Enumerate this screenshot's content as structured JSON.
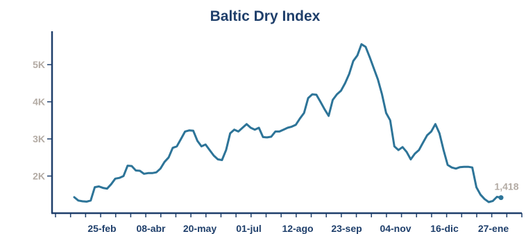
{
  "chart_data": {
    "type": "line",
    "title": "Baltic Dry Index",
    "xlabel": "",
    "ylabel": "",
    "ylim": [
      1000,
      5900
    ],
    "grid": false,
    "line_color": "#2d7498",
    "axis_color": "#1f3f6b",
    "y_ticks": [
      {
        "value": 2000,
        "label": "2K"
      },
      {
        "value": 3000,
        "label": "3K"
      },
      {
        "value": 4000,
        "label": "4K"
      },
      {
        "value": 5000,
        "label": "5K"
      }
    ],
    "x_ticks": [
      "25-feb",
      "08-abr",
      "20-may",
      "01-jul",
      "12-ago",
      "23-sep",
      "04-nov",
      "16-dic",
      "27-ene"
    ],
    "series": [
      {
        "values": [
          1430,
          1340,
          1320,
          1310,
          1340,
          1700,
          1720,
          1680,
          1660,
          1780,
          1930,
          1950,
          2000,
          2280,
          2270,
          2150,
          2140,
          2060,
          2080,
          2080,
          2100,
          2200,
          2380,
          2500,
          2760,
          2800,
          3000,
          3200,
          3230,
          3220,
          2950,
          2800,
          2850,
          2700,
          2550,
          2450,
          2430,
          2700,
          3150,
          3250,
          3200,
          3300,
          3400,
          3300,
          3250,
          3300,
          3050,
          3040,
          3060,
          3200,
          3200,
          3250,
          3300,
          3330,
          3380,
          3550,
          3700,
          4100,
          4200,
          4190,
          4000,
          3800,
          3620,
          4050,
          4200,
          4300,
          4500,
          4750,
          5100,
          5250,
          5550,
          5480,
          5200,
          4900,
          4600,
          4200,
          3700,
          3500,
          2800,
          2700,
          2780,
          2650,
          2450,
          2600,
          2700,
          2900,
          3100,
          3200,
          3400,
          3150,
          2700,
          2300,
          2230,
          2200,
          2240,
          2250,
          2250,
          2230,
          1700,
          1500,
          1380,
          1300,
          1330,
          1440,
          1418
        ],
        "last_label": "1,418"
      }
    ]
  }
}
